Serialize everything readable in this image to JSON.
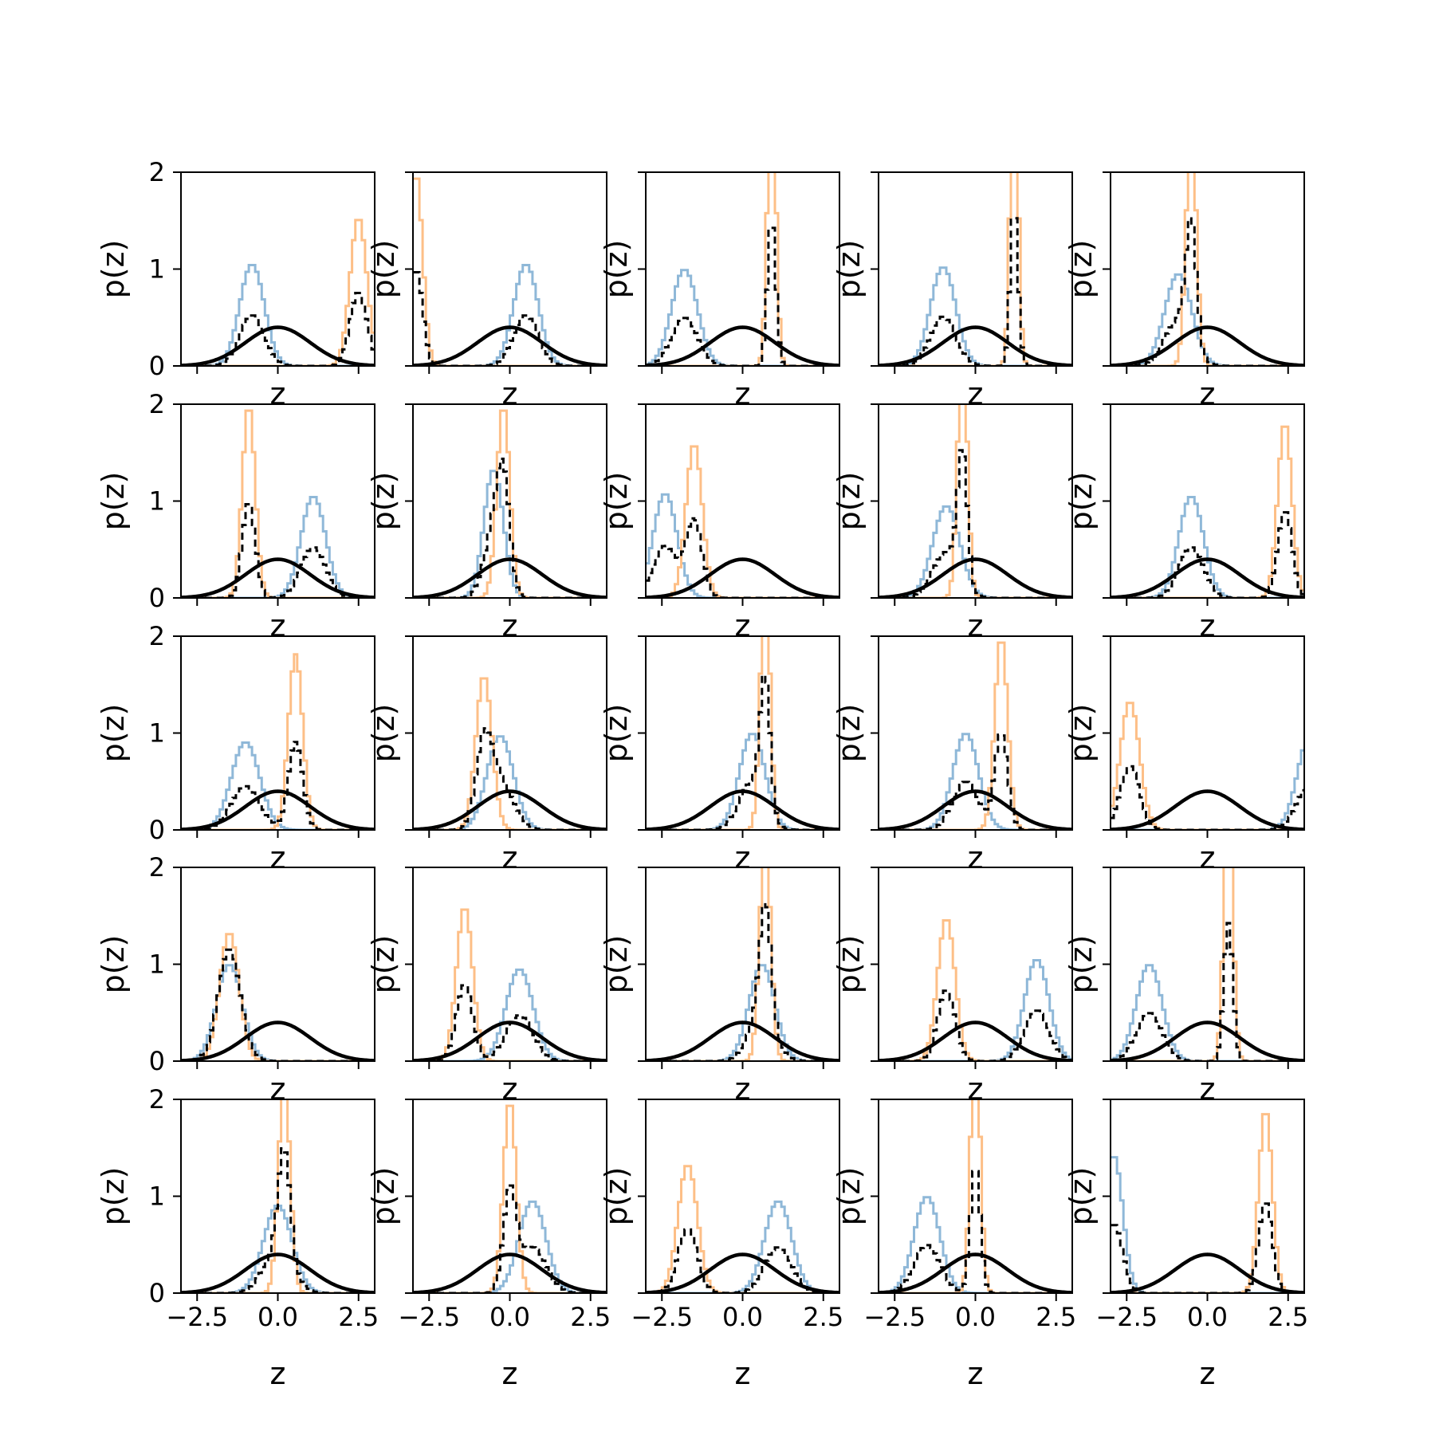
{
  "figure": {
    "rows": 5,
    "cols": 5,
    "xlabel": "z",
    "ylabel": "p(z)",
    "xlim": [
      -3,
      3
    ],
    "ylim": [
      0,
      2
    ],
    "xticks": [
      -2.5,
      0.0,
      2.5
    ],
    "xtick_labels": [
      "−2.5",
      "0.0",
      "2.5"
    ],
    "yticks": [
      0,
      1,
      2
    ],
    "ytick_labels": [
      "0",
      "1",
      "2"
    ]
  },
  "colors": {
    "series_a": "#8fb8d8",
    "series_b": "#fdbf87",
    "mixture": "#000000",
    "reference": "#000000"
  },
  "chart_data": [
    {
      "type": "line",
      "hist_a": {
        "mu": -0.8,
        "sigma": 0.38
      },
      "hist_b": {
        "mu": 2.5,
        "sigma": 0.26
      },
      "ref": {
        "mu": 0,
        "sigma": 1
      }
    },
    {
      "type": "line",
      "hist_a": {
        "mu": 0.5,
        "sigma": 0.38
      },
      "hist_b": {
        "mu": -2.9,
        "sigma": 0.2
      },
      "ref": {
        "mu": 0,
        "sigma": 1
      }
    },
    {
      "type": "line",
      "hist_a": {
        "mu": -1.8,
        "sigma": 0.4
      },
      "hist_b": {
        "mu": 0.9,
        "sigma": 0.13
      },
      "ref": {
        "mu": 0,
        "sigma": 1
      }
    },
    {
      "type": "line",
      "hist_a": {
        "mu": -1.0,
        "sigma": 0.39
      },
      "hist_b": {
        "mu": 1.2,
        "sigma": 0.12
      },
      "ref": {
        "mu": 0,
        "sigma": 1
      }
    },
    {
      "type": "line",
      "hist_a": {
        "mu": -0.9,
        "sigma": 0.42
      },
      "hist_b": {
        "mu": -0.5,
        "sigma": 0.16
      },
      "ref": {
        "mu": 0,
        "sigma": 1
      }
    },
    {
      "type": "line",
      "hist_a": {
        "mu": 1.1,
        "sigma": 0.38
      },
      "hist_b": {
        "mu": -0.9,
        "sigma": 0.2
      },
      "ref": {
        "mu": 0,
        "sigma": 1
      }
    },
    {
      "type": "line",
      "hist_a": {
        "mu": -0.5,
        "sigma": 0.3
      },
      "hist_b": {
        "mu": -0.2,
        "sigma": 0.2
      },
      "ref": {
        "mu": 0,
        "sigma": 1
      }
    },
    {
      "type": "line",
      "hist_a": {
        "mu": -2.4,
        "sigma": 0.37
      },
      "hist_b": {
        "mu": -1.5,
        "sigma": 0.25
      },
      "ref": {
        "mu": 0,
        "sigma": 1
      }
    },
    {
      "type": "line",
      "hist_a": {
        "mu": -0.9,
        "sigma": 0.42
      },
      "hist_b": {
        "mu": -0.4,
        "sigma": 0.15
      },
      "ref": {
        "mu": 0,
        "sigma": 1
      }
    },
    {
      "type": "line",
      "hist_a": {
        "mu": -0.5,
        "sigma": 0.38
      },
      "hist_b": {
        "mu": 2.4,
        "sigma": 0.22
      },
      "ref": {
        "mu": 0,
        "sigma": 1
      }
    },
    {
      "type": "line",
      "hist_a": {
        "mu": -1.0,
        "sigma": 0.44
      },
      "hist_b": {
        "mu": 0.55,
        "sigma": 0.22
      },
      "ref": {
        "mu": 0,
        "sigma": 1
      }
    },
    {
      "type": "line",
      "hist_a": {
        "mu": -0.3,
        "sigma": 0.41
      },
      "hist_b": {
        "mu": -0.8,
        "sigma": 0.25
      },
      "ref": {
        "mu": 0,
        "sigma": 1
      }
    },
    {
      "type": "line",
      "hist_a": {
        "mu": 0.3,
        "sigma": 0.4
      },
      "hist_b": {
        "mu": 0.7,
        "sigma": 0.15
      },
      "ref": {
        "mu": 0,
        "sigma": 1
      }
    },
    {
      "type": "line",
      "hist_a": {
        "mu": -0.3,
        "sigma": 0.4
      },
      "hist_b": {
        "mu": 0.8,
        "sigma": 0.2
      },
      "ref": {
        "mu": 0,
        "sigma": 1
      }
    },
    {
      "type": "line",
      "hist_a": {
        "mu": 3.2,
        "sigma": 0.4
      },
      "hist_b": {
        "mu": -2.4,
        "sigma": 0.3
      },
      "ref": {
        "mu": 0,
        "sigma": 1
      }
    },
    {
      "type": "line",
      "hist_a": {
        "mu": -1.5,
        "sigma": 0.4
      },
      "hist_b": {
        "mu": -1.5,
        "sigma": 0.3
      },
      "ref": {
        "mu": 0,
        "sigma": 1
      }
    },
    {
      "type": "line",
      "hist_a": {
        "mu": 0.3,
        "sigma": 0.42
      },
      "hist_b": {
        "mu": -1.4,
        "sigma": 0.25
      },
      "ref": {
        "mu": 0,
        "sigma": 1
      }
    },
    {
      "type": "line",
      "hist_a": {
        "mu": 0.6,
        "sigma": 0.4
      },
      "hist_b": {
        "mu": 0.7,
        "sigma": 0.17
      },
      "ref": {
        "mu": 0,
        "sigma": 1
      }
    },
    {
      "type": "line",
      "hist_a": {
        "mu": 1.9,
        "sigma": 0.38
      },
      "hist_b": {
        "mu": -0.9,
        "sigma": 0.27
      },
      "ref": {
        "mu": 0,
        "sigma": 1
      }
    },
    {
      "type": "line",
      "hist_a": {
        "mu": -1.8,
        "sigma": 0.4
      },
      "hist_b": {
        "mu": 0.65,
        "sigma": 0.14
      },
      "ref": {
        "mu": 0,
        "sigma": 1
      }
    },
    {
      "type": "line",
      "hist_a": {
        "mu": 0.0,
        "sigma": 0.44
      },
      "hist_b": {
        "mu": 0.2,
        "sigma": 0.18
      },
      "ref": {
        "mu": 0,
        "sigma": 1
      }
    },
    {
      "type": "line",
      "hist_a": {
        "mu": 0.7,
        "sigma": 0.42
      },
      "hist_b": {
        "mu": 0.0,
        "sigma": 0.2
      },
      "ref": {
        "mu": 0,
        "sigma": 1
      }
    },
    {
      "type": "line",
      "hist_a": {
        "mu": 1.1,
        "sigma": 0.42
      },
      "hist_b": {
        "mu": -1.7,
        "sigma": 0.3
      },
      "ref": {
        "mu": 0,
        "sigma": 1
      }
    },
    {
      "type": "line",
      "hist_a": {
        "mu": -1.5,
        "sigma": 0.4
      },
      "hist_b": {
        "mu": 0.0,
        "sigma": 0.15
      },
      "ref": {
        "mu": 0,
        "sigma": 1
      }
    },
    {
      "type": "line",
      "hist_a": {
        "mu": -2.9,
        "sigma": 0.28
      },
      "hist_b": {
        "mu": 1.8,
        "sigma": 0.21
      },
      "ref": {
        "mu": 0,
        "sigma": 1
      }
    }
  ]
}
